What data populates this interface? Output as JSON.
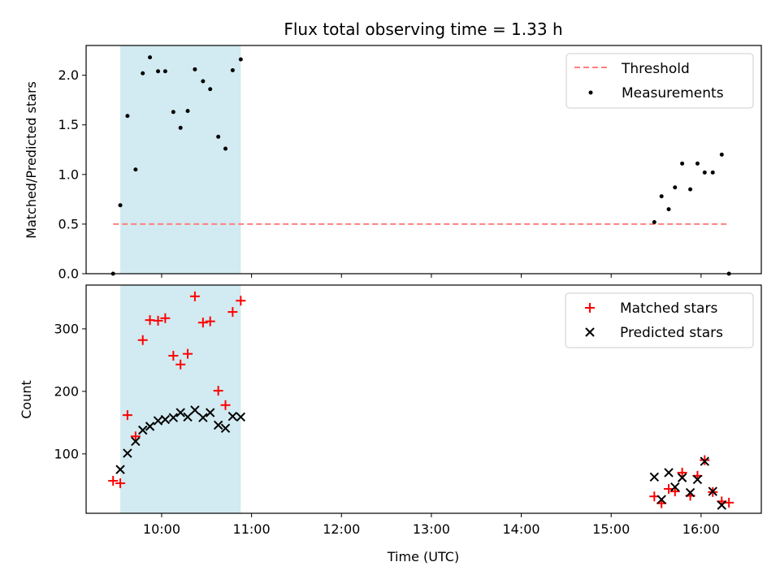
{
  "chart_data": {
    "type": "scatter",
    "title": "Flux total observing time = 1.33 h",
    "xlabel": "Time (UTC)",
    "x_ticks": [
      "10:00",
      "11:00",
      "12:00",
      "13:00",
      "14:00",
      "15:00",
      "16:00"
    ],
    "x_tick_hours": [
      10,
      11,
      12,
      13,
      14,
      15,
      16
    ],
    "xlim": [
      9.16,
      16.67
    ],
    "shaded_interval": {
      "start": "09:32",
      "end": "10:53",
      "start_hours": 9.54,
      "end_hours": 10.88,
      "color": "#add8e6"
    },
    "panels": [
      {
        "ylabel": "Matched/Predicted stars",
        "ylim": [
          0,
          2.3
        ],
        "y_ticks": [
          "0.0",
          "0.5",
          "1.0",
          "1.5",
          "2.0"
        ],
        "y_tick_values": [
          0.0,
          0.5,
          1.0,
          1.5,
          2.0
        ],
        "legend_position": "top-right",
        "series": [
          {
            "name": "Threshold",
            "kind": "dashed-line",
            "color": "#ff7f7f",
            "x": [
              9.46,
              16.31
            ],
            "y": [
              0.5,
              0.5
            ]
          },
          {
            "name": "Measurements",
            "kind": "dot",
            "color": "#000000",
            "x": [
              9.46,
              9.54,
              9.62,
              9.71,
              9.79,
              9.87,
              9.96,
              10.04,
              10.13,
              10.21,
              10.29,
              10.37,
              10.46,
              10.54,
              10.63,
              10.71,
              10.79,
              10.88,
              15.48,
              15.56,
              15.64,
              15.71,
              15.79,
              15.88,
              15.96,
              16.04,
              16.13,
              16.23,
              16.31
            ],
            "y": [
              0.0,
              0.69,
              1.59,
              1.05,
              2.02,
              2.18,
              2.04,
              2.04,
              1.63,
              1.47,
              1.64,
              2.06,
              1.94,
              1.86,
              1.38,
              1.26,
              2.05,
              2.16,
              0.52,
              0.78,
              0.65,
              0.87,
              1.11,
              0.85,
              1.11,
              1.02,
              1.02,
              1.2,
              0.0
            ]
          }
        ]
      },
      {
        "ylabel": "Count",
        "ylim": [
          5,
          370
        ],
        "y_ticks": [
          "100",
          "200",
          "300"
        ],
        "y_tick_values": [
          100,
          200,
          300
        ],
        "legend_position": "top-right",
        "series": [
          {
            "name": "Matched stars",
            "kind": "plus",
            "color": "#ff0000",
            "x": [
              9.46,
              9.54,
              9.62,
              9.71,
              9.79,
              9.87,
              9.96,
              10.04,
              10.13,
              10.21,
              10.29,
              10.37,
              10.46,
              10.54,
              10.63,
              10.71,
              10.79,
              10.88,
              15.48,
              15.56,
              15.64,
              15.71,
              15.79,
              15.88,
              15.96,
              16.04,
              16.13,
              16.23,
              16.31
            ],
            "y": [
              57,
              53,
              162,
              128,
              282,
              314,
              313,
              317,
              257,
              243,
              260,
              352,
              310,
              312,
              201,
              178,
              327,
              345,
              32,
              21,
              44,
              40,
              70,
              33,
              65,
              90,
              39,
              24,
              22
            ]
          },
          {
            "name": "Predicted stars",
            "kind": "cross",
            "color": "#000000",
            "x": [
              9.54,
              9.62,
              9.71,
              9.79,
              9.87,
              9.96,
              10.04,
              10.13,
              10.21,
              10.29,
              10.37,
              10.46,
              10.54,
              10.63,
              10.71,
              10.79,
              10.88,
              15.48,
              15.56,
              15.64,
              15.71,
              15.79,
              15.88,
              15.96,
              16.04,
              16.13,
              16.23
            ],
            "y": [
              75,
              101,
              120,
              138,
              144,
              153,
              155,
              158,
              166,
              159,
              170,
              158,
              166,
              146,
              141,
              160,
              159,
              63,
              27,
              70,
              47,
              62,
              38,
              59,
              88,
              40,
              18
            ]
          }
        ]
      }
    ]
  }
}
